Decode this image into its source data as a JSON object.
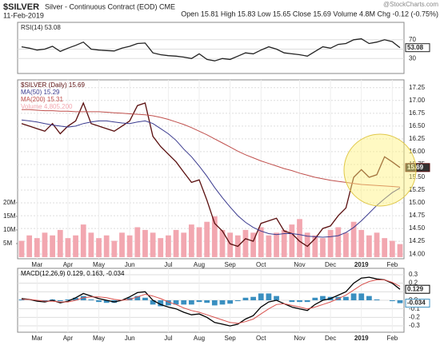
{
  "header": {
    "symbol": "$SILVER",
    "name": "Silver - Continuous Contract (EOD) CME",
    "date": "11-Feb-2019",
    "quote": "Open 15.81 High 15.83 Low 15.65 Close 15.69 Volume 4.8M Chg -0.12 (-0.75%)",
    "source": "@StockCharts.com"
  },
  "chart_data": [
    {
      "type": "line",
      "ylim": [
        10,
        90
      ],
      "yticks": [
        30,
        50,
        70
      ],
      "series": [
        {
          "name": "RSI(14) 53.08",
          "color": "#222222",
          "label_last": true,
          "values": [
            55,
            52,
            48,
            50,
            56,
            45,
            52,
            58,
            65,
            50,
            48,
            47,
            46,
            52,
            56,
            62,
            63,
            42,
            38,
            36,
            35,
            33,
            30,
            40,
            28,
            25,
            30,
            28,
            35,
            42,
            40,
            48,
            55,
            50,
            42,
            40,
            38,
            35,
            45,
            55,
            52,
            60,
            62,
            70,
            72,
            62,
            65,
            70,
            66,
            53.08
          ]
        }
      ]
    },
    {
      "type": "line",
      "ylim": [
        13.94,
        17.34
      ],
      "yticks": [
        {
          "value": 14,
          "label": "14.00"
        },
        14.25,
        {
          "value": 14.5,
          "label": "14.50"
        },
        14.75,
        {
          "value": 15,
          "label": "15.00"
        },
        15.25,
        {
          "value": 15.5,
          "label": "15.50"
        },
        15.75,
        {
          "value": 16,
          "label": "16.00"
        },
        16.25,
        {
          "value": 16.5,
          "label": "16.50"
        },
        16.75,
        {
          "value": 17,
          "label": "17.00"
        },
        17.25
      ],
      "y2lim": [
        0,
        64
      ],
      "y2ticks": [
        {
          "value": 5,
          "label": "5M"
        },
        {
          "value": 10,
          "label": "10M"
        },
        {
          "value": 15,
          "label": "15M"
        },
        {
          "value": 20,
          "label": "20M"
        }
      ],
      "grid": true,
      "categories": [
        null,
        null,
        "Mar",
        null,
        null,
        null,
        "Apr",
        null,
        null,
        null,
        "May",
        null,
        null,
        null,
        "Jun",
        null,
        null,
        null,
        null,
        "Jul",
        null,
        null,
        null,
        "Aug",
        null,
        null,
        null,
        "Sep",
        null,
        null,
        null,
        "Oct",
        null,
        null,
        null,
        null,
        "Nov",
        null,
        null,
        null,
        "Dec",
        null,
        null,
        null,
        "2019",
        null,
        null,
        null,
        "Feb",
        null
      ],
      "series": [
        {
          "name": "$SILVER (Daily) 15.69",
          "color": "#5a0f0f",
          "label_last": true,
          "values": [
            16.55,
            16.5,
            16.45,
            16.4,
            16.55,
            16.35,
            16.5,
            16.6,
            16.95,
            16.55,
            16.5,
            16.45,
            16.4,
            16.5,
            16.6,
            16.9,
            16.95,
            16.3,
            16.1,
            15.95,
            15.8,
            15.6,
            15.4,
            15.45,
            15.05,
            14.6,
            14.45,
            14.2,
            14.15,
            14.3,
            14.25,
            14.6,
            14.65,
            14.7,
            14.45,
            14.4,
            14.25,
            14.15,
            14.3,
            14.5,
            14.55,
            14.75,
            14.9,
            15.5,
            15.65,
            15.5,
            15.55,
            15.9,
            15.8,
            15.69
          ]
        },
        {
          "name": "MA(50) 15.29",
          "color": "#3b3b8f",
          "values": [
            16.62,
            16.6,
            16.58,
            16.55,
            16.52,
            16.5,
            16.48,
            16.5,
            16.55,
            16.58,
            16.6,
            16.6,
            16.58,
            16.56,
            16.55,
            16.58,
            16.6,
            16.55,
            16.45,
            16.35,
            16.22,
            16.05,
            15.9,
            15.72,
            15.52,
            15.3,
            15.1,
            14.92,
            14.75,
            14.62,
            14.52,
            14.45,
            14.4,
            14.38,
            14.4,
            14.4,
            14.38,
            14.35,
            14.34,
            14.33,
            14.34,
            14.36,
            14.42,
            14.52,
            14.65,
            14.8,
            14.95,
            15.08,
            15.2,
            15.29
          ]
        },
        {
          "name": "MA(200) 15.31",
          "color": "#c0504d",
          "values": [
            16.82,
            16.82,
            16.81,
            16.8,
            16.8,
            16.79,
            16.79,
            16.78,
            16.78,
            16.78,
            16.78,
            16.77,
            16.76,
            16.75,
            16.74,
            16.73,
            16.72,
            16.7,
            16.67,
            16.63,
            16.58,
            16.53,
            16.47,
            16.4,
            16.33,
            16.25,
            16.17,
            16.09,
            16.01,
            15.94,
            15.88,
            15.82,
            15.77,
            15.72,
            15.67,
            15.63,
            15.58,
            15.54,
            15.5,
            15.47,
            15.44,
            15.42,
            15.4,
            15.38,
            15.36,
            15.35,
            15.34,
            15.33,
            15.32,
            15.31
          ]
        },
        {
          "name": "Volume 4,805,200",
          "color": "#f2a7b0",
          "type": "bar",
          "axis": "y2",
          "values": [
            6,
            8,
            7,
            9,
            8,
            10,
            7,
            8,
            12,
            9,
            7,
            8,
            6,
            9,
            8,
            11,
            10,
            9,
            7,
            8,
            10,
            9,
            12,
            11,
            13,
            15,
            10,
            9,
            8,
            10,
            9,
            11,
            8,
            9,
            10,
            12,
            14,
            9,
            8,
            7,
            10,
            11,
            9,
            13,
            10,
            8,
            9,
            7,
            6,
            4.8052
          ]
        }
      ]
    },
    {
      "type": "line",
      "ylim": [
        -0.35,
        0.35
      ],
      "yticks": [
        -0.3,
        -0.2,
        -0.1,
        {
          "value": 0,
          "label": "0.0"
        },
        0.1,
        0.2,
        0.3
      ],
      "categories": [
        null,
        null,
        "Mar",
        null,
        null,
        null,
        "Apr",
        null,
        null,
        null,
        "May",
        null,
        null,
        null,
        "Jun",
        null,
        null,
        null,
        null,
        "Jul",
        null,
        null,
        null,
        "Aug",
        null,
        null,
        null,
        "Sep",
        null,
        null,
        null,
        "Oct",
        null,
        null,
        null,
        null,
        "Nov",
        null,
        null,
        null,
        "Dec",
        null,
        null,
        null,
        "2019",
        null,
        null,
        null,
        "Feb",
        null
      ],
      "series": [
        {
          "name": "MACD(12,26,9) 0.129, 0.163, -0.034",
          "color": "#000000",
          "label_last": true,
          "values": [
            0.02,
            0.01,
            -0.01,
            -0.02,
            0,
            -0.03,
            -0.01,
            0.03,
            0.08,
            0.05,
            0.02,
            0,
            -0.02,
            0,
            0.04,
            0.09,
            0.1,
            0,
            -0.05,
            -0.08,
            -0.1,
            -0.14,
            -0.17,
            -0.16,
            -0.2,
            -0.26,
            -0.28,
            -0.3,
            -0.28,
            -0.22,
            -0.18,
            -0.08,
            -0.02,
            0,
            -0.04,
            -0.08,
            -0.1,
            -0.12,
            -0.05,
            0,
            0.02,
            0.06,
            0.1,
            0.2,
            0.26,
            0.27,
            0.25,
            0.24,
            0.2,
            0.129
          ]
        },
        {
          "color": "#d9534f",
          "values": [
            0.01,
            0.01,
            0,
            -0.01,
            -0.01,
            -0.02,
            -0.02,
            0,
            0.03,
            0.04,
            0.04,
            0.03,
            0.01,
            0,
            0.01,
            0.04,
            0.07,
            0.05,
            0.02,
            -0.02,
            -0.05,
            -0.09,
            -0.12,
            -0.14,
            -0.17,
            -0.2,
            -0.23,
            -0.26,
            -0.27,
            -0.25,
            -0.22,
            -0.16,
            -0.1,
            -0.05,
            -0.04,
            -0.06,
            -0.08,
            -0.1,
            -0.08,
            -0.05,
            -0.02,
            0.02,
            0.06,
            0.12,
            0.18,
            0.22,
            0.24,
            0.24,
            0.21,
            0.163
          ]
        },
        {
          "color": "#3a8fc0",
          "type": "bar",
          "label_last": true,
          "values": [
            0.01,
            0,
            -0.01,
            -0.01,
            0.01,
            -0.01,
            0.01,
            0.03,
            0.05,
            0.01,
            -0.02,
            -0.03,
            -0.03,
            0,
            0.03,
            0.05,
            0.03,
            -0.05,
            -0.07,
            -0.06,
            -0.05,
            -0.05,
            -0.05,
            -0.02,
            -0.03,
            -0.06,
            -0.05,
            -0.04,
            -0.01,
            0.03,
            0.04,
            0.08,
            0.08,
            0.05,
            0,
            -0.02,
            -0.02,
            -0.02,
            0.03,
            0.05,
            0.04,
            0.04,
            0.04,
            0.08,
            0.08,
            0.05,
            0.01,
            0,
            -0.01,
            -0.034
          ]
        }
      ]
    }
  ]
}
